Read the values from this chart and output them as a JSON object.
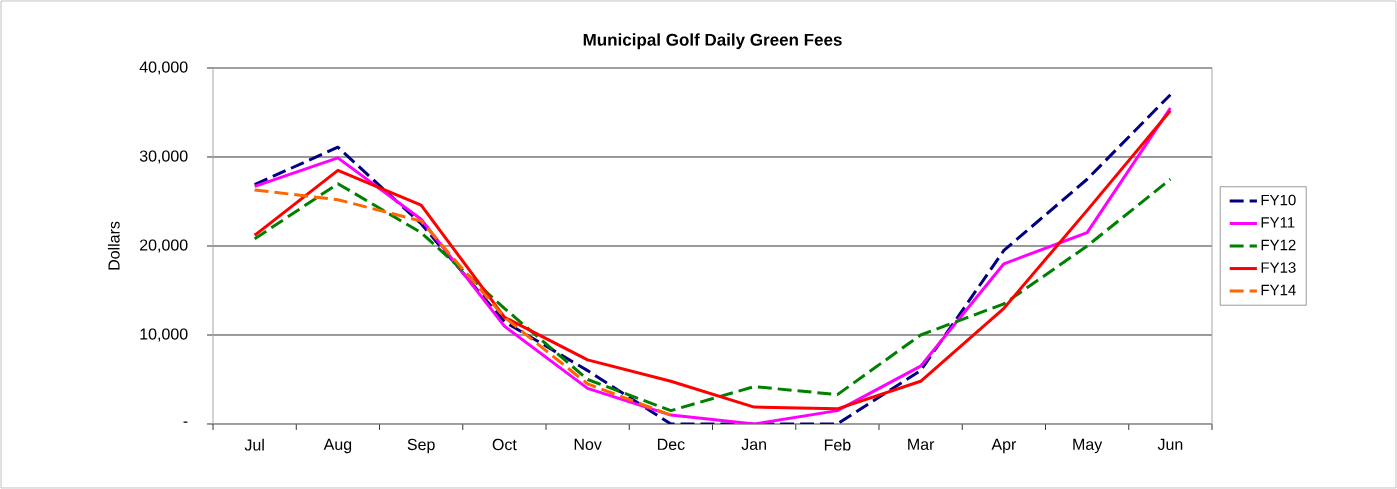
{
  "chart_data": {
    "type": "line",
    "title": "Municipal Golf Daily Green Fees",
    "ylabel": "Dollars",
    "categories": [
      "Jul",
      "Aug",
      "Sep",
      "Oct",
      "Nov",
      "Dec",
      "Jan",
      "Feb",
      "Mar",
      "Apr",
      "May",
      "Jun"
    ],
    "series": [
      {
        "name": "FY10",
        "color": "#000080",
        "line_style": "dashed",
        "values": [
          26900,
          31100,
          22500,
          11500,
          6000,
          0,
          0,
          0,
          6000,
          19500,
          27500,
          37000
        ]
      },
      {
        "name": "FY11",
        "color": "#ff00ff",
        "line_style": "solid",
        "values": [
          26700,
          29900,
          23000,
          11000,
          4000,
          1000,
          0,
          1500,
          6500,
          18000,
          21500,
          35500
        ]
      },
      {
        "name": "FY12",
        "color": "#008000",
        "line_style": "dashed",
        "values": [
          20800,
          27000,
          21500,
          13000,
          5000,
          1500,
          4200,
          3300,
          10000,
          13500,
          20000,
          27500
        ]
      },
      {
        "name": "FY13",
        "color": "#ff0000",
        "line_style": "solid",
        "values": [
          21200,
          28500,
          24600,
          12000,
          7200,
          4800,
          1900,
          1700,
          4800,
          13000,
          24000,
          35200
        ]
      },
      {
        "name": "FY14",
        "color": "#ff6600",
        "line_style": "dashed",
        "values": [
          26300,
          25200,
          22800,
          12000,
          4500,
          1000,
          null,
          null,
          null,
          null,
          null,
          null
        ]
      }
    ],
    "ylim": [
      0,
      40000
    ],
    "yticks": [
      {
        "value": 0,
        "label": "-"
      },
      {
        "value": 10000,
        "label": "10,000"
      },
      {
        "value": 20000,
        "label": "20,000"
      },
      {
        "value": 30000,
        "label": "30,000"
      },
      {
        "value": 40000,
        "label": "40,000"
      }
    ],
    "grid": "y",
    "legend": "right",
    "marker": "none"
  }
}
